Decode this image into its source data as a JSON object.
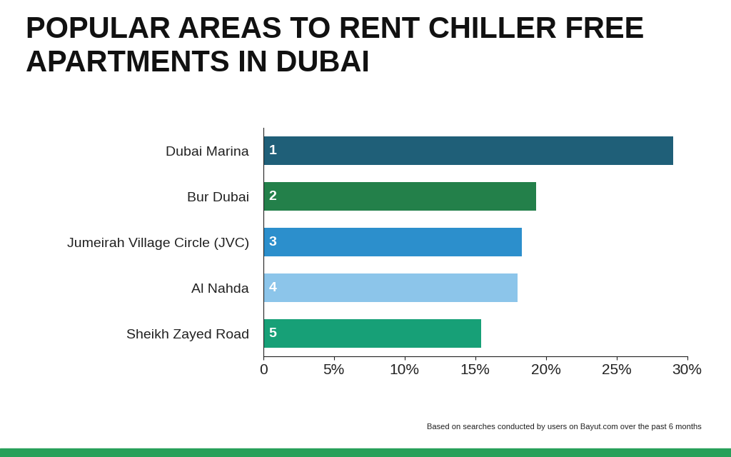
{
  "chart_data": {
    "type": "bar",
    "orientation": "horizontal",
    "title": "POPULAR AREAS TO RENT CHILLER FREE APARTMENTS IN DUBAI",
    "categories": [
      "Dubai Marina",
      "Bur Dubai",
      "Jumeirah Village Circle (JVC)",
      "Al Nahda",
      "Sheikh Zayed Road"
    ],
    "values": [
      29,
      19.3,
      18.3,
      18,
      15.4
    ],
    "ranks": [
      1,
      2,
      3,
      4,
      5
    ],
    "colors": [
      "#1f5f78",
      "#23804a",
      "#2c8fcc",
      "#8cc5ea",
      "#17a077"
    ],
    "xlim": [
      0,
      30
    ],
    "xticks": [
      0,
      {
        "value": 5,
        "label": "5%"
      },
      {
        "value": 10,
        "label": "10%"
      },
      {
        "value": 15,
        "label": "15%"
      },
      {
        "value": 20,
        "label": "20%"
      },
      {
        "value": 25,
        "label": "25%"
      },
      {
        "value": 30,
        "label": "30%"
      }
    ],
    "grid": false,
    "footnote": "Based on searches conducted by users on Bayut.com over the past 6 months"
  }
}
